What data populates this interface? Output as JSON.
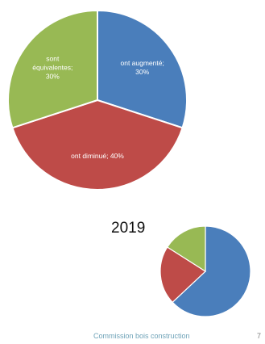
{
  "chart_data": [
    {
      "type": "pie",
      "title": "",
      "slices": [
        {
          "label": "ont augmenté",
          "value": 30,
          "color": "#4a7ebb",
          "data_label": "ont augmenté;\n30%"
        },
        {
          "label": "ont diminué",
          "value": 40,
          "color": "#be4b48",
          "data_label": "ont diminué; 40%"
        },
        {
          "label": "sont équivalentes",
          "value": 30,
          "color": "#98b954",
          "data_label": "sont\néquivalentes;\n30%"
        }
      ]
    },
    {
      "type": "pie",
      "title": "2019",
      "slices": [
        {
          "label": "",
          "value": 63,
          "color": "#4a7ebb"
        },
        {
          "label": "",
          "value": 21,
          "color": "#be4b48"
        },
        {
          "label": "",
          "value": 16,
          "color": "#98b954"
        }
      ]
    }
  ],
  "footer": {
    "text": "Commission bois construction",
    "page_number": "7"
  }
}
